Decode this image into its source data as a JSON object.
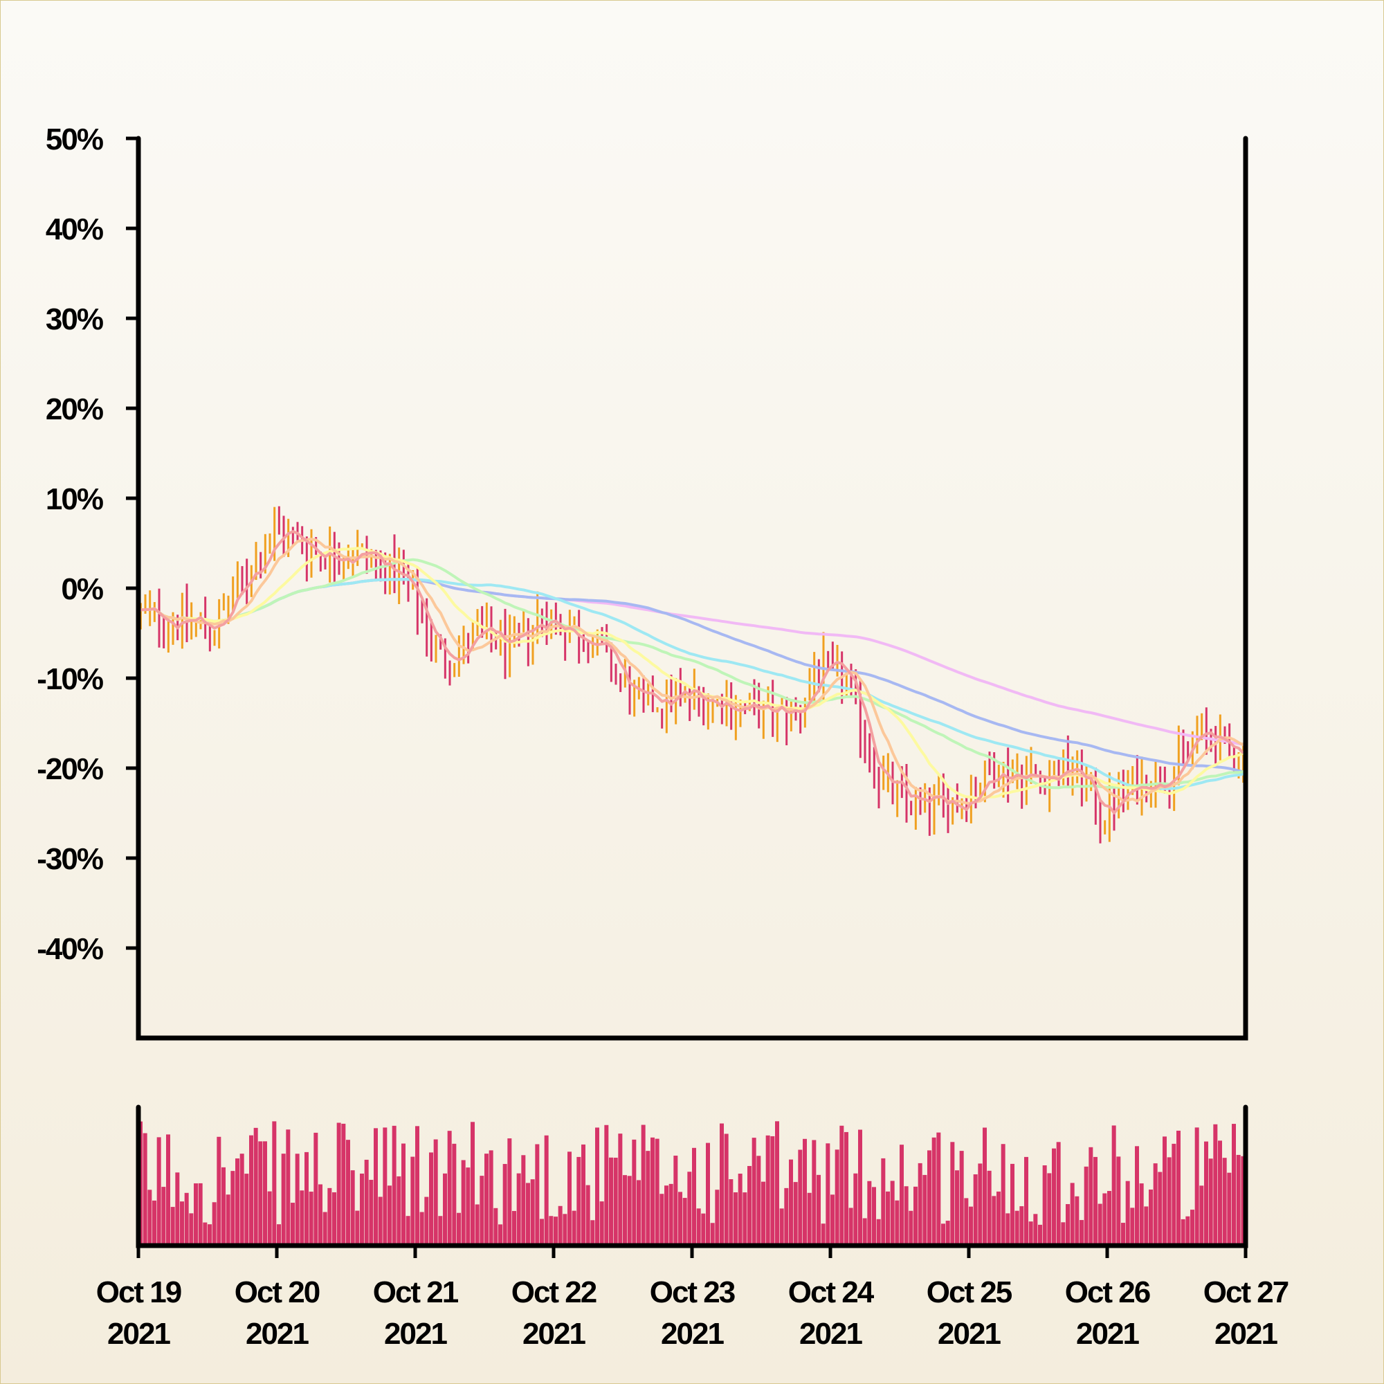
{
  "chart_data": {
    "type": "ohlc",
    "title": "",
    "xlabel": "",
    "ylabel": "",
    "ylim": [
      -50,
      50
    ],
    "y_unit": "%",
    "y_ticks": [
      "50%",
      "40%",
      "30%",
      "20%",
      "10%",
      "0%",
      "-10%",
      "-20%",
      "-30%",
      "-40%"
    ],
    "x_ticks": [
      {
        "line1": "Oct 19",
        "line2": "2021"
      },
      {
        "line1": "Oct 20",
        "line2": "2021"
      },
      {
        "line1": "Oct 21",
        "line2": "2021"
      },
      {
        "line1": "Oct 22",
        "line2": "2021"
      },
      {
        "line1": "Oct 23",
        "line2": "2021"
      },
      {
        "line1": "Oct 24",
        "line2": "2021"
      },
      {
        "line1": "Oct 25",
        "line2": "2021"
      },
      {
        "line1": "Oct 26",
        "line2": "2021"
      },
      {
        "line1": "Oct 27",
        "line2": "2021"
      }
    ],
    "x_start": "2021-10-19",
    "x_end": "2021-10-27",
    "bars_per_day": 30,
    "colors": {
      "up": "#f0a020",
      "down": "#d63468",
      "volume": "#d63468",
      "axis": "#000000"
    },
    "close_path": [
      {
        "day": 0.0,
        "value": -3.0
      },
      {
        "day": 0.3,
        "value": -3.5
      },
      {
        "day": 0.55,
        "value": -4.5
      },
      {
        "day": 0.8,
        "value": 2.0
      },
      {
        "day": 1.0,
        "value": 6.5
      },
      {
        "day": 1.3,
        "value": 4.0
      },
      {
        "day": 1.6,
        "value": 4.0
      },
      {
        "day": 1.9,
        "value": 1.0
      },
      {
        "day": 2.2,
        "value": -8.0
      },
      {
        "day": 2.5,
        "value": -5.0
      },
      {
        "day": 2.7,
        "value": -7.0
      },
      {
        "day": 2.9,
        "value": -3.0
      },
      {
        "day": 3.3,
        "value": -6.0
      },
      {
        "day": 3.6,
        "value": -13.0
      },
      {
        "day": 3.9,
        "value": -12.0
      },
      {
        "day": 4.2,
        "value": -12.5
      },
      {
        "day": 4.5,
        "value": -14.0
      },
      {
        "day": 4.75,
        "value": -14.0
      },
      {
        "day": 4.9,
        "value": -9.0
      },
      {
        "day": 5.1,
        "value": -10.0
      },
      {
        "day": 5.35,
        "value": -21.0
      },
      {
        "day": 5.55,
        "value": -24.0
      },
      {
        "day": 5.9,
        "value": -24.0
      },
      {
        "day": 6.2,
        "value": -20.0
      },
      {
        "day": 6.5,
        "value": -21.0
      },
      {
        "day": 6.75,
        "value": -20.0
      },
      {
        "day": 6.95,
        "value": -25.0
      },
      {
        "day": 7.2,
        "value": -22.0
      },
      {
        "day": 7.5,
        "value": -20.0
      },
      {
        "day": 7.65,
        "value": -16.0
      },
      {
        "day": 8.0,
        "value": -19.0
      }
    ],
    "moving_averages": [
      {
        "window": 5,
        "color": "#f4a0a0"
      },
      {
        "window": 10,
        "color": "#fcc89a"
      },
      {
        "window": 20,
        "color": "#fdfaa0"
      },
      {
        "window": 40,
        "color": "#bff5b8"
      },
      {
        "window": 60,
        "color": "#9ee8f3"
      },
      {
        "window": 90,
        "color": "#a7b8f2"
      },
      {
        "window": 140,
        "color": "#f1b9f5"
      }
    ],
    "grid": false,
    "legend": "none",
    "volume_panel": true
  }
}
